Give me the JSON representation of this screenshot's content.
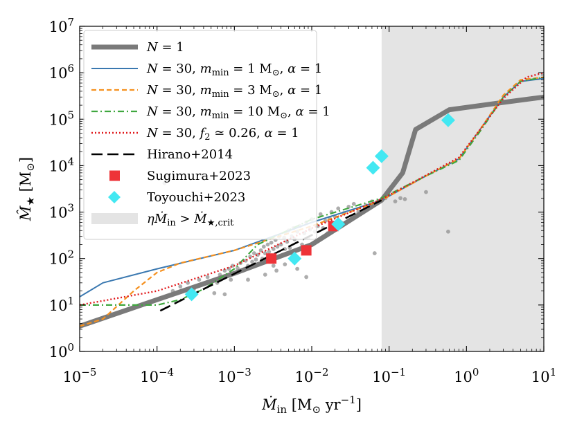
{
  "chart_data": {
    "type": "line",
    "xscale": "log",
    "yscale": "log",
    "xlim": [
      1e-05,
      10
    ],
    "ylim": [
      1,
      10000000.0
    ],
    "xlabel": "Ṁ_in [M_⊙ yr⁻¹]",
    "ylabel": "M̂_★ [M_⊙]",
    "grid": false,
    "legend_position": "upper-left",
    "shaded_region": {
      "x_from": 0.08,
      "x_to": 10,
      "label": "ηṀ_in > Ṁ_★,crit",
      "color": "#e4e4e4"
    },
    "x_ticks": [
      {
        "value": 1e-05,
        "base": "10",
        "exp": "−5"
      },
      {
        "value": 0.0001,
        "base": "10",
        "exp": "−4"
      },
      {
        "value": 0.001,
        "base": "10",
        "exp": "−3"
      },
      {
        "value": 0.01,
        "base": "10",
        "exp": "−2"
      },
      {
        "value": 0.1,
        "base": "10",
        "exp": "−1"
      },
      {
        "value": 1,
        "base": "10",
        "exp": "0"
      },
      {
        "value": 10,
        "base": "10",
        "exp": "1"
      }
    ],
    "y_ticks": [
      {
        "value": 1,
        "base": "10",
        "exp": "0"
      },
      {
        "value": 10,
        "base": "10",
        "exp": "1"
      },
      {
        "value": 100,
        "base": "10",
        "exp": "2"
      },
      {
        "value": 1000,
        "base": "10",
        "exp": "3"
      },
      {
        "value": 10000,
        "base": "10",
        "exp": "4"
      },
      {
        "value": 100000,
        "base": "10",
        "exp": "5"
      },
      {
        "value": 1000000,
        "base": "10",
        "exp": "6"
      },
      {
        "value": 10000000,
        "base": "10",
        "exp": "7"
      }
    ],
    "series": [
      {
        "name": "N = 1",
        "color": "#7a7a7a",
        "style": "solid",
        "width": 7,
        "x": [
          1e-05,
          0.0001,
          0.001,
          0.01,
          0.08,
          0.15,
          0.22,
          0.6,
          3,
          10
        ],
        "y": [
          3.5,
          13,
          48,
          200,
          1800,
          7000,
          60000,
          160000,
          230000,
          300000
        ]
      },
      {
        "name": "N = 30, m_min = 1 M_⊙, α = 1",
        "color": "#3a78b0",
        "style": "solid",
        "width": 2,
        "x": [
          1e-05,
          2e-05,
          0.0001,
          0.001,
          0.01,
          0.08,
          0.3,
          0.8,
          1.5,
          3,
          5,
          10
        ],
        "y": [
          15,
          30,
          60,
          150,
          600,
          1800,
          6000,
          14000,
          60000,
          300000,
          650000,
          750000
        ]
      },
      {
        "name": "N = 30, m_min = 3 M_⊙, α = 1",
        "color": "#f5901e",
        "style": "dashed",
        "width": 2.2,
        "x": [
          1e-05,
          2e-05,
          5e-05,
          0.0001,
          0.0002,
          0.001,
          0.01,
          0.08,
          0.3,
          0.8,
          1.5,
          3,
          5,
          10
        ],
        "y": [
          3.5,
          5,
          20,
          50,
          80,
          150,
          500,
          1800,
          6000,
          14000,
          60000,
          330000,
          700000,
          800000
        ]
      },
      {
        "name": "N = 30, m_min = 10 M_⊙, α = 1",
        "color": "#3fa73f",
        "style": "dashdot",
        "width": 2.2,
        "x": [
          1e-05,
          0.0001,
          0.0002,
          0.0004,
          0.001,
          0.002,
          0.01,
          0.08,
          0.3,
          0.8,
          1.5,
          3,
          5,
          10
        ],
        "y": [
          10,
          10,
          13,
          22,
          60,
          200,
          700,
          2000,
          6000,
          13000,
          55000,
          300000,
          650000,
          800000
        ]
      },
      {
        "name": "N = 30, f₂ ≃ 0.26, α = 1",
        "color": "#e0191c",
        "style": "dotted",
        "width": 2.4,
        "x": [
          1e-05,
          0.0001,
          0.001,
          0.01,
          0.08,
          0.3,
          0.8,
          1.5,
          3,
          6,
          10
        ],
        "y": [
          10,
          20,
          70,
          450,
          1900,
          6200,
          15000,
          60000,
          280000,
          800000,
          1000000
        ]
      },
      {
        "name": "Hirano+2014",
        "color": "#000000",
        "style": "longdash",
        "width": 2.6,
        "x": [
          0.00011,
          0.08
        ],
        "y": [
          7.5,
          1800
        ]
      }
    ],
    "markers": [
      {
        "name": "Sugimura+2023",
        "shape": "square",
        "color": "#ee3338",
        "x": [
          0.003,
          0.0085,
          0.019
        ],
        "y": [
          100,
          150,
          500
        ]
      },
      {
        "name": "Toyouchi+2023",
        "shape": "diamond",
        "color": "#43e8f2",
        "x": [
          0.00028,
          0.006,
          0.022,
          0.062,
          0.08,
          0.58
        ],
        "y": [
          17,
          100,
          550,
          9000,
          16000,
          95000
        ]
      }
    ],
    "scatter_gray": {
      "color": "#8a8a8a",
      "points": [
        [
          0.000125,
          4200
        ],
        [
          0.00016,
          20
        ],
        [
          0.0002,
          25
        ],
        [
          0.00025,
          30
        ],
        [
          0.0003,
          22
        ],
        [
          0.00035,
          35
        ],
        [
          0.0004,
          28
        ],
        [
          0.00045,
          40
        ],
        [
          0.0005,
          32
        ],
        [
          0.00055,
          18
        ],
        [
          0.0006,
          30
        ],
        [
          0.00065,
          45
        ],
        [
          0.0007,
          38
        ],
        [
          0.00075,
          55
        ],
        [
          0.0008,
          42
        ],
        [
          0.00085,
          60
        ],
        [
          0.0009,
          35
        ],
        [
          0.00095,
          70
        ],
        [
          0.001,
          48
        ],
        [
          0.0011,
          62
        ],
        [
          0.0012,
          80
        ],
        [
          0.0013,
          55
        ],
        [
          0.0014,
          90
        ],
        [
          0.0015,
          70
        ],
        [
          0.0016,
          110
        ],
        [
          0.0017,
          85
        ],
        [
          0.0018,
          130
        ],
        [
          0.0019,
          95
        ],
        [
          0.002,
          120
        ],
        [
          0.0021,
          75
        ],
        [
          0.0022,
          150
        ],
        [
          0.0023,
          100
        ],
        [
          0.0024,
          180
        ],
        [
          0.0025,
          130
        ],
        [
          0.0026,
          90
        ],
        [
          0.0027,
          200
        ],
        [
          0.0028,
          140
        ],
        [
          0.003,
          220
        ],
        [
          0.0032,
          160
        ],
        [
          0.0034,
          250
        ],
        [
          0.0036,
          180
        ],
        [
          0.0038,
          300
        ],
        [
          0.004,
          200
        ],
        [
          0.0042,
          120
        ],
        [
          0.0044,
          280
        ],
        [
          0.0046,
          350
        ],
        [
          0.0048,
          230
        ],
        [
          0.005,
          400
        ],
        [
          0.0052,
          170
        ],
        [
          0.0055,
          300
        ],
        [
          0.0058,
          450
        ],
        [
          0.006,
          260
        ],
        [
          0.0065,
          380
        ],
        [
          0.007,
          500
        ],
        [
          0.0075,
          200
        ],
        [
          0.008,
          350
        ],
        [
          0.0085,
          600
        ],
        [
          0.009,
          280
        ],
        [
          0.0095,
          420
        ],
        [
          0.01,
          700
        ],
        [
          0.011,
          380
        ],
        [
          0.012,
          500
        ],
        [
          0.013,
          900
        ],
        [
          0.014,
          450
        ],
        [
          0.015,
          650
        ],
        [
          0.016,
          350
        ],
        [
          0.017,
          750
        ],
        [
          0.018,
          1000
        ],
        [
          0.019,
          550
        ],
        [
          0.02,
          800
        ],
        [
          0.022,
          1200
        ],
        [
          0.024,
          600
        ],
        [
          0.026,
          950
        ],
        [
          0.03,
          1300
        ],
        [
          0.035,
          1500
        ],
        [
          0.04,
          1000
        ],
        [
          0.05,
          1400
        ],
        [
          0.06,
          1700
        ],
        [
          0.065,
          130
        ],
        [
          0.00075,
          17
        ],
        [
          0.0015,
          35
        ],
        [
          0.0025,
          45
        ],
        [
          0.0035,
          55
        ],
        [
          0.0045,
          75
        ],
        [
          0.0055,
          95
        ],
        [
          0.0065,
          60
        ],
        [
          0.0085,
          40
        ],
        [
          0.0032,
          70
        ],
        [
          0.0045,
          160
        ],
        [
          0.09,
          2000
        ],
        [
          0.12,
          1700
        ],
        [
          0.14,
          2000
        ],
        [
          0.16,
          1900
        ],
        [
          0.3,
          2700
        ],
        [
          0.58,
          380
        ]
      ]
    }
  }
}
